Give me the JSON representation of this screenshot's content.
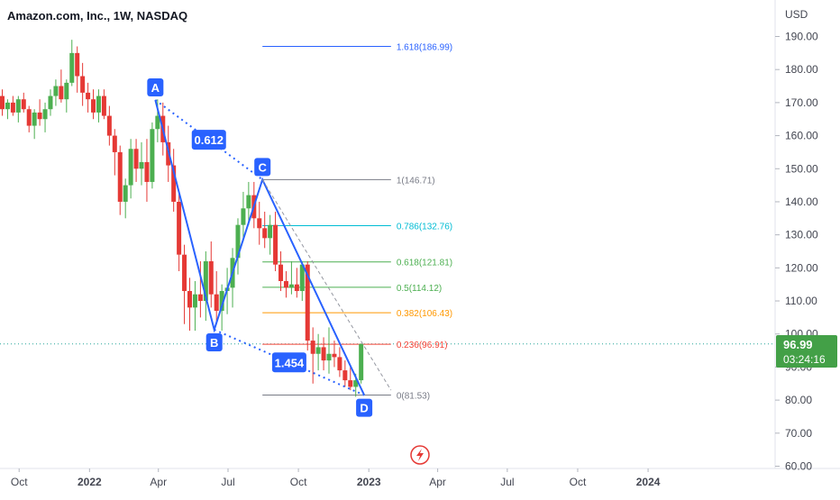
{
  "title": "Amazon.com, Inc., 1W, NASDAQ",
  "currency": "USD",
  "colors": {
    "up": "#4caf50",
    "down": "#e53935",
    "pattern": "#2962ff",
    "grid": "#e0e3eb",
    "price_line": "#26a69a",
    "price_badge": "#43a047",
    "text": "#131722",
    "axis_text": "#434651"
  },
  "price_badge": {
    "price": "96.99",
    "countdown": "03:24:16"
  },
  "lightning_icon": "lightning-icon",
  "chart_data": {
    "type": "candlestick",
    "y_axis": {
      "min": 60,
      "max": 190,
      "ticks": [
        "60.00",
        "70.00",
        "80.00",
        "90.00",
        "100.00",
        "110.00",
        "120.00",
        "130.00",
        "140.00",
        "150.00",
        "160.00",
        "170.00",
        "180.00",
        "190.00"
      ]
    },
    "x_axis": {
      "range": [
        "2021-09-06",
        "2024-06-15"
      ],
      "ticks": [
        {
          "label": "Oct",
          "date": "2021-10-01"
        },
        {
          "label": "2022",
          "date": "2022-01-01",
          "bold": true
        },
        {
          "label": "Apr",
          "date": "2022-04-01"
        },
        {
          "label": "Jul",
          "date": "2022-07-01"
        },
        {
          "label": "Oct",
          "date": "2022-10-01"
        },
        {
          "label": "2023",
          "date": "2023-01-01",
          "bold": true
        },
        {
          "label": "Apr",
          "date": "2023-04-01"
        },
        {
          "label": "Jul",
          "date": "2023-07-01"
        },
        {
          "label": "Oct",
          "date": "2023-10-01"
        },
        {
          "label": "2024",
          "date": "2024-01-01",
          "bold": true
        }
      ]
    },
    "candles_start": "2021-09-06",
    "candles": [
      [
        172,
        174,
        166,
        168
      ],
      [
        168,
        171,
        165,
        170
      ],
      [
        170,
        172,
        166,
        167
      ],
      [
        167,
        172,
        164,
        171
      ],
      [
        171,
        173,
        167,
        168
      ],
      [
        168,
        169,
        161,
        163
      ],
      [
        163,
        168,
        159,
        167
      ],
      [
        167,
        171,
        163,
        165
      ],
      [
        165,
        170,
        161,
        168
      ],
      [
        168,
        174,
        166,
        172
      ],
      [
        172,
        177,
        169,
        175
      ],
      [
        175,
        180,
        170,
        171
      ],
      [
        171,
        177,
        167,
        176
      ],
      [
        176,
        189,
        175,
        185
      ],
      [
        185,
        187,
        173,
        178
      ],
      [
        178,
        182,
        169,
        173
      ],
      [
        173,
        176,
        167,
        171
      ],
      [
        171,
        174,
        165,
        167
      ],
      [
        167,
        174,
        164,
        172
      ],
      [
        172,
        174,
        165,
        166
      ],
      [
        166,
        169,
        157,
        160
      ],
      [
        160,
        162,
        148,
        155
      ],
      [
        155,
        157,
        136,
        140
      ],
      [
        140,
        147,
        135,
        145
      ],
      [
        145,
        159,
        141,
        156
      ],
      [
        156,
        159,
        146,
        150
      ],
      [
        150,
        158,
        145,
        152
      ],
      [
        152,
        159,
        140,
        146
      ],
      [
        146,
        164,
        144,
        162
      ],
      [
        162,
        171,
        158,
        166
      ],
      [
        166,
        170,
        154,
        158
      ],
      [
        158,
        163,
        146,
        151
      ],
      [
        151,
        156,
        137,
        140
      ],
      [
        140,
        143,
        119,
        124
      ],
      [
        124,
        127,
        103,
        113
      ],
      [
        113,
        117,
        101,
        108
      ],
      [
        108,
        116,
        101,
        112
      ],
      [
        112,
        122,
        105,
        110
      ],
      [
        110,
        125,
        104,
        122
      ],
      [
        122,
        128,
        108,
        112
      ],
      [
        112,
        119,
        103,
        107
      ],
      [
        107,
        115,
        101,
        113
      ],
      [
        113,
        120,
        106,
        114
      ],
      [
        114,
        126,
        108,
        123
      ],
      [
        123,
        135,
        118,
        133
      ],
      [
        133,
        143,
        128,
        138
      ],
      [
        138,
        146,
        133,
        142
      ],
      [
        142,
        146,
        132,
        135
      ],
      [
        135,
        140,
        127,
        132
      ],
      [
        132,
        137,
        126,
        129
      ],
      [
        129,
        136,
        124,
        133
      ],
      [
        133,
        137,
        119,
        121
      ],
      [
        121,
        125,
        113,
        116
      ],
      [
        116,
        119,
        111,
        114
      ],
      [
        114,
        122,
        112,
        115
      ],
      [
        115,
        120,
        111,
        113
      ],
      [
        113,
        122,
        110,
        121
      ],
      [
        121,
        122,
        95,
        98
      ],
      [
        98,
        102,
        85,
        94
      ],
      [
        94,
        100,
        89,
        96
      ],
      [
        96,
        99,
        89,
        92
      ],
      [
        92,
        102,
        88,
        94
      ],
      [
        94,
        98,
        90,
        93
      ],
      [
        93,
        96,
        87,
        89
      ],
      [
        89,
        92,
        84,
        86
      ],
      [
        86,
        90,
        83,
        84
      ],
      [
        84,
        88,
        81,
        86
      ],
      [
        86,
        97,
        85,
        97
      ]
    ],
    "harmonic_pattern": {
      "points": [
        {
          "label": "A",
          "date": "2022-03-28",
          "price": 170.8
        },
        {
          "label": "B",
          "date": "2022-06-13",
          "price": 101.3
        },
        {
          "label": "C",
          "date": "2022-08-15",
          "price": 146.7
        },
        {
          "label": "D",
          "date": "2022-12-26",
          "price": 81.5
        }
      ],
      "ratios": [
        {
          "label": "0.612",
          "between": [
            "A",
            "C"
          ]
        },
        {
          "label": "1.454",
          "between": [
            "B",
            "D"
          ]
        }
      ]
    },
    "fib_start": "2022-08-15",
    "fib_end": "2023-01-30",
    "fib_levels": [
      {
        "label": "1.618(186.99)",
        "value": 186.99,
        "color": "#2962ff"
      },
      {
        "label": "1(146.71)",
        "value": 146.71,
        "color": "#787b86"
      },
      {
        "label": "0.786(132.76)",
        "value": 132.76,
        "color": "#00bcd4"
      },
      {
        "label": "0.618(121.81)",
        "value": 121.81,
        "color": "#4caf50"
      },
      {
        "label": "0.5(114.12)",
        "value": 114.12,
        "color": "#4caf50"
      },
      {
        "label": "0.382(106.43)",
        "value": 106.43,
        "color": "#ff9800"
      },
      {
        "label": "0.236(96.91)",
        "value": 96.91,
        "color": "#f44336"
      },
      {
        "label": "0(81.53)",
        "value": 81.53,
        "color": "#787b86"
      }
    ],
    "trendline": {
      "start": {
        "date": "2022-08-15",
        "price": 146.7
      },
      "end": {
        "date": "2023-01-30",
        "price": 83
      }
    },
    "current_price": 96.99
  }
}
